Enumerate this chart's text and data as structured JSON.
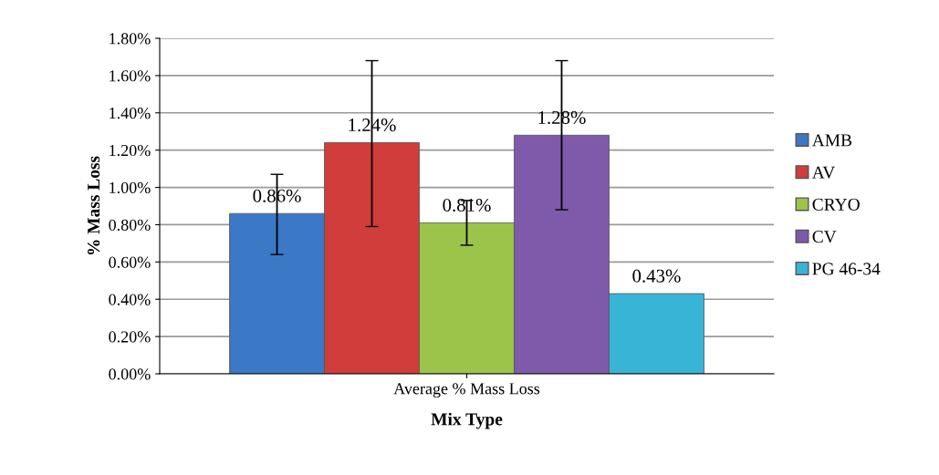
{
  "chart_data": {
    "type": "bar",
    "xlabel": "Mix Type",
    "ylabel": "% Mass Loss",
    "categories": [
      "Average % Mass Loss"
    ],
    "series": [
      {
        "name": "AMB",
        "color": "#3b78c6",
        "values": [
          0.86
        ],
        "errors": [
          [
            0.64,
            1.07
          ]
        ],
        "value_labels": [
          "0.86%"
        ]
      },
      {
        "name": "AV",
        "color": "#d03d3b",
        "values": [
          1.24
        ],
        "errors": [
          [
            0.79,
            1.68
          ]
        ],
        "value_labels": [
          "1.24%"
        ]
      },
      {
        "name": "CRYO",
        "color": "#9cc44a",
        "values": [
          0.81
        ],
        "errors": [
          [
            0.69,
            0.93
          ]
        ],
        "value_labels": [
          "0.81%"
        ]
      },
      {
        "name": "CV",
        "color": "#7f5aaa",
        "values": [
          1.28
        ],
        "errors": [
          [
            0.88,
            1.68
          ]
        ],
        "value_labels": [
          "1.28%"
        ]
      },
      {
        "name": "PG 46-34",
        "color": "#38b5d6",
        "values": [
          0.43
        ],
        "value_labels": [
          "0.43%"
        ]
      }
    ],
    "ylim": [
      0,
      1.8
    ],
    "yticks": [
      {
        "value": 0,
        "label": "0.00%"
      },
      {
        "value": 0.2,
        "label": "0.20%"
      },
      {
        "value": 0.4,
        "label": "0.40%"
      },
      {
        "value": 0.6,
        "label": "0.60%"
      },
      {
        "value": 0.8,
        "label": "0.80%"
      },
      {
        "value": 1.0,
        "label": "1.00%"
      },
      {
        "value": 1.2,
        "label": "1.20%"
      },
      {
        "value": 1.4,
        "label": "1.40%"
      },
      {
        "value": 1.6,
        "label": "1.60%"
      },
      {
        "value": 1.8,
        "label": "1.80%"
      }
    ],
    "grid": "y",
    "legend": "right"
  }
}
